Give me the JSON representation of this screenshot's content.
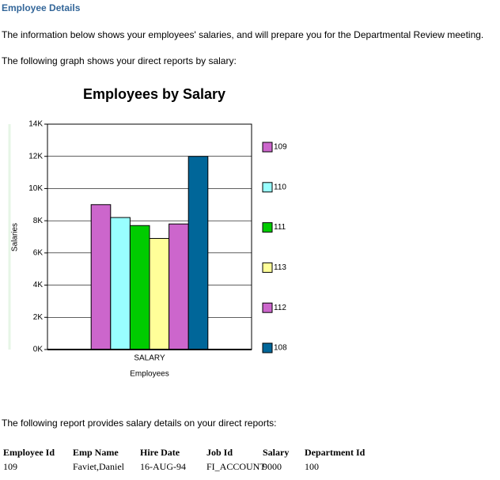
{
  "header": {
    "title": "Employee Details"
  },
  "paragraphs": [
    "The information below shows your employees' salaries, and will prepare you for the Departmental Review meeting.",
    "The following graph shows your direct reports by salary:",
    "The following report provides salary details on your direct reports:"
  ],
  "chart_data": {
    "type": "bar",
    "title": "Employees by Salary",
    "x_label": "Employees",
    "y_label": "Salaries",
    "categories": [
      "SALARY"
    ],
    "series": [
      {
        "name": "109",
        "color": "#cc66cc",
        "values": [
          9000
        ]
      },
      {
        "name": "110",
        "color": "#99ffff",
        "values": [
          8200
        ]
      },
      {
        "name": "111",
        "color": "#00cc00",
        "values": [
          7700
        ]
      },
      {
        "name": "113",
        "color": "#ffff99",
        "values": [
          6900
        ]
      },
      {
        "name": "112",
        "color": "#cc66cc",
        "values": [
          7800
        ]
      },
      {
        "name": "108",
        "color": "#006699",
        "values": [
          12000
        ]
      }
    ],
    "ylim": [
      0,
      14000
    ],
    "yticks": [
      {
        "value": 0,
        "label": "0K"
      },
      {
        "value": 2000,
        "label": "2K"
      },
      {
        "value": 4000,
        "label": "4K"
      },
      {
        "value": 6000,
        "label": "6K"
      },
      {
        "value": 8000,
        "label": "8K"
      },
      {
        "value": 10000,
        "label": "10K"
      },
      {
        "value": 12000,
        "label": "12K"
      },
      {
        "value": 14000,
        "label": "14K"
      }
    ],
    "grid": true,
    "legend": "right"
  },
  "table": {
    "columns": [
      "Employee Id",
      "Emp Name",
      "Hire Date",
      "Job Id",
      "Salary",
      "Department Id"
    ],
    "rows": [
      [
        "109",
        "Faviet,Daniel",
        "16-AUG-94",
        "FI_ACCOUNT",
        "9000",
        "100"
      ]
    ]
  }
}
